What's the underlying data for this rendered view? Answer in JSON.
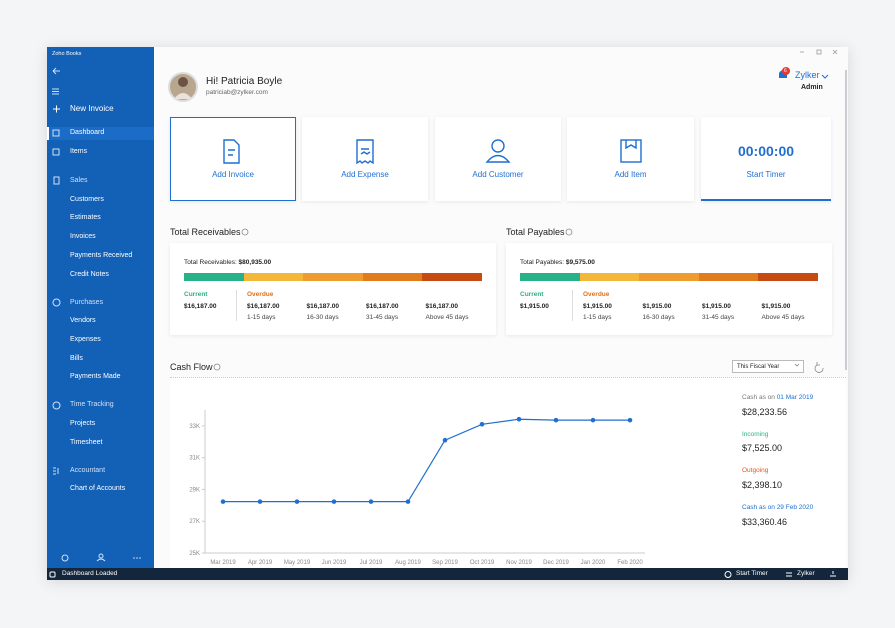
{
  "window": {
    "app_name": "Zoho Books"
  },
  "sidebar": {
    "new_invoice": "New Invoice",
    "top": [
      "Dashboard",
      "Items"
    ],
    "sections": [
      {
        "title": "Sales",
        "items": [
          "Customers",
          "Estimates",
          "Invoices",
          "Payments Received",
          "Credit Notes"
        ]
      },
      {
        "title": "Purchases",
        "items": [
          "Vendors",
          "Expenses",
          "Bills",
          "Payments Made"
        ]
      },
      {
        "title": "Time Tracking",
        "items": [
          "Projects",
          "Timesheet"
        ]
      },
      {
        "title": "Accountant",
        "items": [
          "Chart of Accounts"
        ]
      }
    ]
  },
  "header": {
    "greeting": "Hi! Patricia Boyle",
    "email": "patriciab@zylker.com",
    "notifications": 6,
    "organization": "Zylker",
    "role": "Admin"
  },
  "quick_actions": [
    "Add Invoice",
    "Add Expense",
    "Add Customer",
    "Add Item"
  ],
  "timer": {
    "time": "00:00:00",
    "action": "Start Timer"
  },
  "receivables": {
    "title": "Total Receivables",
    "total_label": "Total Receivables:",
    "total": "$80,935.00",
    "current": {
      "label": "Current",
      "amount": "$16,187.00"
    },
    "overdue": {
      "label": "Overdue",
      "buckets": [
        {
          "amount": "$16,187.00",
          "range": "1-15 days"
        },
        {
          "amount": "$16,187.00",
          "range": "16-30 days"
        },
        {
          "amount": "$16,187.00",
          "range": "31-45 days"
        },
        {
          "amount": "$16,187.00",
          "range": "Above 45 days"
        }
      ]
    }
  },
  "payables": {
    "title": "Total Payables",
    "total_label": "Total Payables:",
    "total": "$9,575.00",
    "current": {
      "label": "Current",
      "amount": "$1,915.00"
    },
    "overdue": {
      "label": "Overdue",
      "buckets": [
        {
          "amount": "$1,915.00",
          "range": "1-15 days"
        },
        {
          "amount": "$1,915.00",
          "range": "16-30 days"
        },
        {
          "amount": "$1,915.00",
          "range": "31-45 days"
        },
        {
          "amount": "$1,915.00",
          "range": "Above 45 days"
        }
      ]
    }
  },
  "cash_flow": {
    "title": "Cash Flow",
    "period": "This Fiscal Year",
    "chart": {
      "type": "line",
      "categories": [
        "Mar 2019",
        "Apr 2019",
        "May 2019",
        "Jun 2019",
        "Jul 2019",
        "Aug 2019",
        "Sep 2019",
        "Oct 2019",
        "Nov 2019",
        "Dec 2019",
        "Jan 2020",
        "Feb 2020"
      ],
      "values": [
        28233.56,
        28233.56,
        28233.56,
        28233.56,
        28233.56,
        28233.56,
        32100,
        33100,
        33420,
        33360.46,
        33360.46,
        33360.46
      ],
      "color": "#1f6fd1",
      "ylim": [
        25000,
        34000
      ],
      "yticks": [
        {
          "value": 25000,
          "label": "25K"
        },
        {
          "value": 27000,
          "label": "27K"
        },
        {
          "value": 29000,
          "label": "29K"
        },
        {
          "value": 31000,
          "label": "31K"
        },
        {
          "value": 33000,
          "label": "33K"
        }
      ]
    },
    "summary": {
      "opening": {
        "label": "Cash as on",
        "date": "01 Mar 2019",
        "amount": "$28,233.56"
      },
      "incoming": {
        "label": "Incoming",
        "amount": "$7,525.00"
      },
      "outgoing": {
        "label": "Outgoing",
        "amount": "$2,398.10"
      },
      "closing": {
        "label": "Cash as on",
        "date": "29 Feb 2020",
        "amount": "$33,360.46"
      }
    }
  },
  "status_bar": {
    "message": "Dashboard Loaded",
    "timer": "Start Timer",
    "organization": "Zylker"
  }
}
